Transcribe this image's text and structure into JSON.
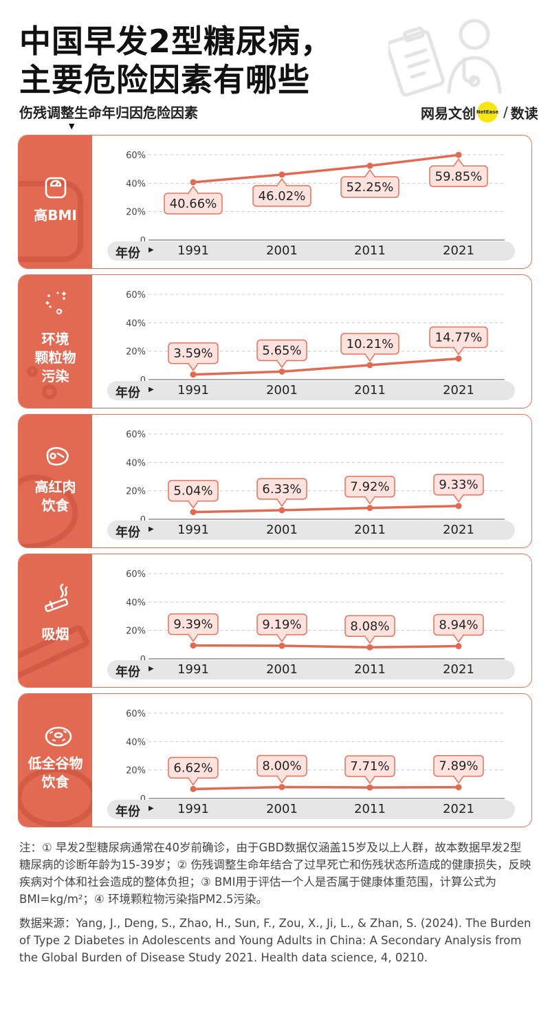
{
  "title": {
    "line1": "中国早发2型糖尿病，",
    "line2": "主要危险因素有哪些"
  },
  "subtitle": "伤残调整生命年归因危险因素",
  "logo": {
    "part1": "网易",
    "part2": "文创",
    "badge": "NetEase",
    "slash": "/",
    "part3": "数读"
  },
  "year_header": "年份",
  "icons": [
    "scale-icon",
    "particles-icon",
    "meat-icon",
    "cigarette-icon",
    "donut-icon"
  ],
  "colors": {
    "accent": "#e26a53",
    "line": "#e06a52",
    "label_fill": "#fde2de",
    "label_border": "#e8705a"
  },
  "chart_data": [
    {
      "type": "line",
      "label_lines": [
        "高BMI"
      ],
      "x": [
        "1991",
        "2001",
        "2011",
        "2021"
      ],
      "values": [
        40.66,
        46.02,
        52.25,
        59.85
      ],
      "value_labels": [
        "40.66%",
        "46.02%",
        "52.25%",
        "59.85%"
      ],
      "ylim": [
        0,
        60
      ],
      "yticks": [
        "0",
        "20%",
        "40%",
        "60%"
      ],
      "label_placement": [
        "below",
        "below",
        "below",
        "below"
      ]
    },
    {
      "type": "line",
      "label_lines": [
        "环境",
        "颗粒物",
        "污染"
      ],
      "x": [
        "1991",
        "2001",
        "2011",
        "2021"
      ],
      "values": [
        3.59,
        5.65,
        10.21,
        14.77
      ],
      "value_labels": [
        "3.59%",
        "5.65%",
        "10.21%",
        "14.77%"
      ],
      "ylim": [
        0,
        60
      ],
      "yticks": [
        "0",
        "20%",
        "40%",
        "60%"
      ],
      "label_placement": [
        "above",
        "above",
        "above",
        "above"
      ]
    },
    {
      "type": "line",
      "label_lines": [
        "高红肉",
        "饮食"
      ],
      "x": [
        "1991",
        "2001",
        "2011",
        "2021"
      ],
      "values": [
        5.04,
        6.33,
        7.92,
        9.33
      ],
      "value_labels": [
        "5.04%",
        "6.33%",
        "7.92%",
        "9.33%"
      ],
      "ylim": [
        0,
        60
      ],
      "yticks": [
        "0",
        "20%",
        "40%",
        "60%"
      ],
      "label_placement": [
        "above",
        "above",
        "above",
        "above"
      ]
    },
    {
      "type": "line",
      "label_lines": [
        "吸烟"
      ],
      "x": [
        "1991",
        "2001",
        "2011",
        "2021"
      ],
      "values": [
        9.39,
        9.19,
        8.08,
        8.94
      ],
      "value_labels": [
        "9.39%",
        "9.19%",
        "8.08%",
        "8.94%"
      ],
      "ylim": [
        0,
        60
      ],
      "yticks": [
        "0",
        "20%",
        "40%",
        "60%"
      ],
      "label_placement": [
        "above",
        "above",
        "above",
        "above"
      ]
    },
    {
      "type": "line",
      "label_lines": [
        "低全谷物",
        "饮食"
      ],
      "x": [
        "1991",
        "2001",
        "2011",
        "2021"
      ],
      "values": [
        6.62,
        8.0,
        7.71,
        7.89
      ],
      "value_labels": [
        "6.62%",
        "8.00%",
        "7.71%",
        "7.89%"
      ],
      "ylim": [
        0,
        60
      ],
      "yticks": [
        "0",
        "20%",
        "40%",
        "60%"
      ],
      "label_placement": [
        "above",
        "above",
        "above",
        "above"
      ]
    }
  ],
  "notes": {
    "note": "注：① 早发2型糖尿病通常在40岁前确诊，由于GBD数据仅涵盖15岁及以上人群，故本数据早发2型糖尿病的诊断年龄为15-39岁；② 伤残调整生命年结合了过早死亡和伤残状态所造成的健康损失，反映疾病对个体和社会造成的整体负担；③ BMI用于评估一个人是否属于健康体重范围，计算公式为BMI=kg/m²；④ 环境颗粒物污染指PM2.5污染。",
    "source": "数据来源：Yang, J., Deng, S., Zhao, H., Sun, F., Zou, X., Ji, L., & Zhan, S. (2024). The Burden of Type 2 Diabetes in Adolescents and Young Adults in China: A Secondary Analysis from the Global Burden of Disease Study 2021. Health data science, 4, 0210."
  }
}
